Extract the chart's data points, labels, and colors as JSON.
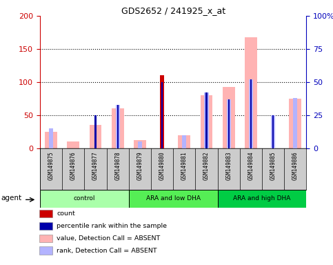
{
  "title": "GDS2652 / 241925_x_at",
  "samples": [
    "GSM149875",
    "GSM149876",
    "GSM149877",
    "GSM149878",
    "GSM149879",
    "GSM149880",
    "GSM149881",
    "GSM149882",
    "GSM149883",
    "GSM149884",
    "GSM149885",
    "GSM149886"
  ],
  "groups": [
    {
      "label": "control",
      "start": 0,
      "end": 4,
      "color": "#aaffaa"
    },
    {
      "label": "ARA and low DHA",
      "start": 4,
      "end": 8,
      "color": "#55ee55"
    },
    {
      "label": "ARA and high DHA",
      "start": 8,
      "end": 12,
      "color": "#00cc00"
    }
  ],
  "value_absent": [
    25,
    10,
    35,
    60,
    13,
    0,
    20,
    80,
    93,
    168,
    0,
    75
  ],
  "rank_absent_pct": [
    15,
    0,
    0,
    33,
    5,
    0,
    10,
    42,
    37,
    52,
    25,
    38
  ],
  "count": [
    0,
    0,
    0,
    0,
    0,
    110,
    0,
    0,
    0,
    0,
    0,
    0
  ],
  "percentile": [
    0,
    0,
    25,
    33,
    0,
    50,
    0,
    42,
    37,
    52,
    25,
    0
  ],
  "ylim_left": [
    0,
    200
  ],
  "ylim_right": [
    0,
    100
  ],
  "left_ticks": [
    0,
    50,
    100,
    150,
    200
  ],
  "right_ticks": [
    0,
    25,
    50,
    75,
    100
  ],
  "left_color": "#cc0000",
  "right_color": "#0000bb",
  "bar_color_count": "#cc0000",
  "bar_color_pct": "#0000aa",
  "bar_color_value_absent": "#ffb3b3",
  "bar_color_rank_absent": "#b3b3ff",
  "bg_label": "#cccccc",
  "legend_items": [
    {
      "color": "#cc0000",
      "label": "count"
    },
    {
      "color": "#0000aa",
      "label": "percentile rank within the sample"
    },
    {
      "color": "#ffb3b3",
      "label": "value, Detection Call = ABSENT"
    },
    {
      "color": "#b3b3ff",
      "label": "rank, Detection Call = ABSENT"
    }
  ]
}
